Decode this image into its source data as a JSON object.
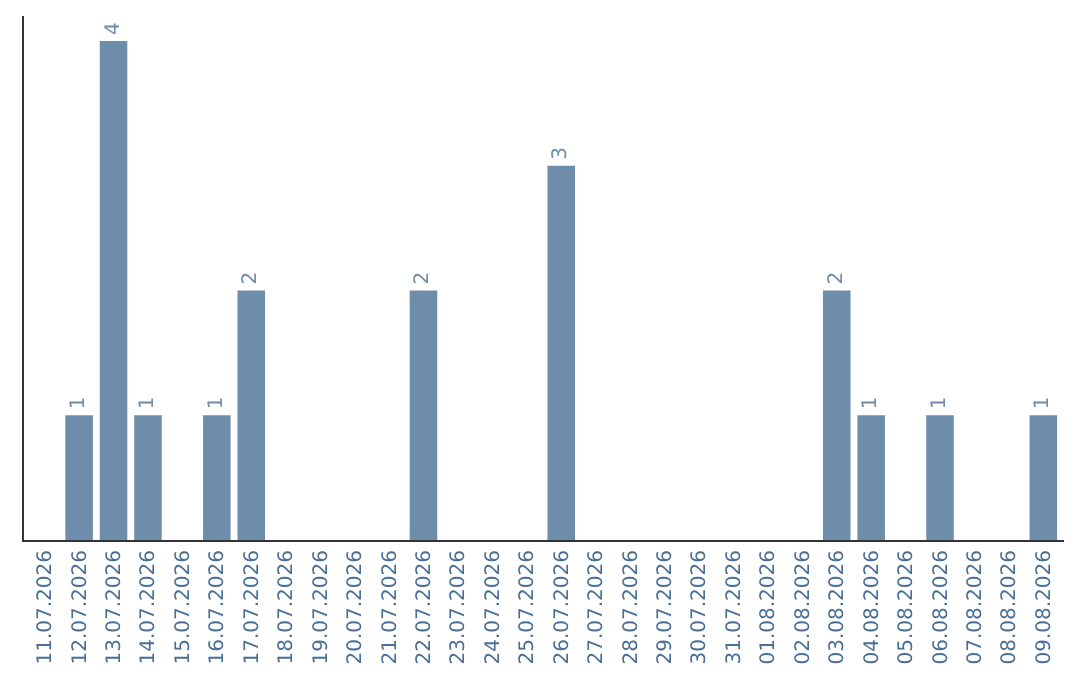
{
  "chart_data": {
    "type": "bar",
    "categories": [
      "11.07.2026",
      "12.07.2026",
      "13.07.2026",
      "14.07.2026",
      "15.07.2026",
      "16.07.2026",
      "17.07.2026",
      "18.07.2026",
      "19.07.2026",
      "20.07.2026",
      "21.07.2026",
      "22.07.2026",
      "23.07.2026",
      "24.07.2026",
      "25.07.2026",
      "26.07.2026",
      "27.07.2026",
      "28.07.2026",
      "29.07.2026",
      "30.07.2026",
      "31.07.2026",
      "01.08.2026",
      "02.08.2026",
      "03.08.2026",
      "04.08.2026",
      "05.08.2026",
      "06.08.2026",
      "07.08.2026",
      "08.08.2026",
      "09.08.2026"
    ],
    "values": [
      0,
      1,
      4,
      1,
      0,
      1,
      2,
      0,
      0,
      0,
      0,
      2,
      0,
      0,
      0,
      3,
      0,
      0,
      0,
      0,
      0,
      0,
      0,
      2,
      1,
      0,
      1,
      0,
      0,
      1
    ],
    "value_labels": [
      null,
      "1",
      "4",
      "1",
      null,
      "1",
      "2",
      null,
      null,
      null,
      null,
      "2",
      null,
      null,
      null,
      "3",
      null,
      null,
      null,
      null,
      null,
      null,
      null,
      "2",
      "1",
      null,
      "1",
      null,
      null,
      "1"
    ],
    "color": "#6e8dab",
    "ylim": [
      0,
      4.2
    ],
    "tick_labels": "x",
    "grid": false
  }
}
